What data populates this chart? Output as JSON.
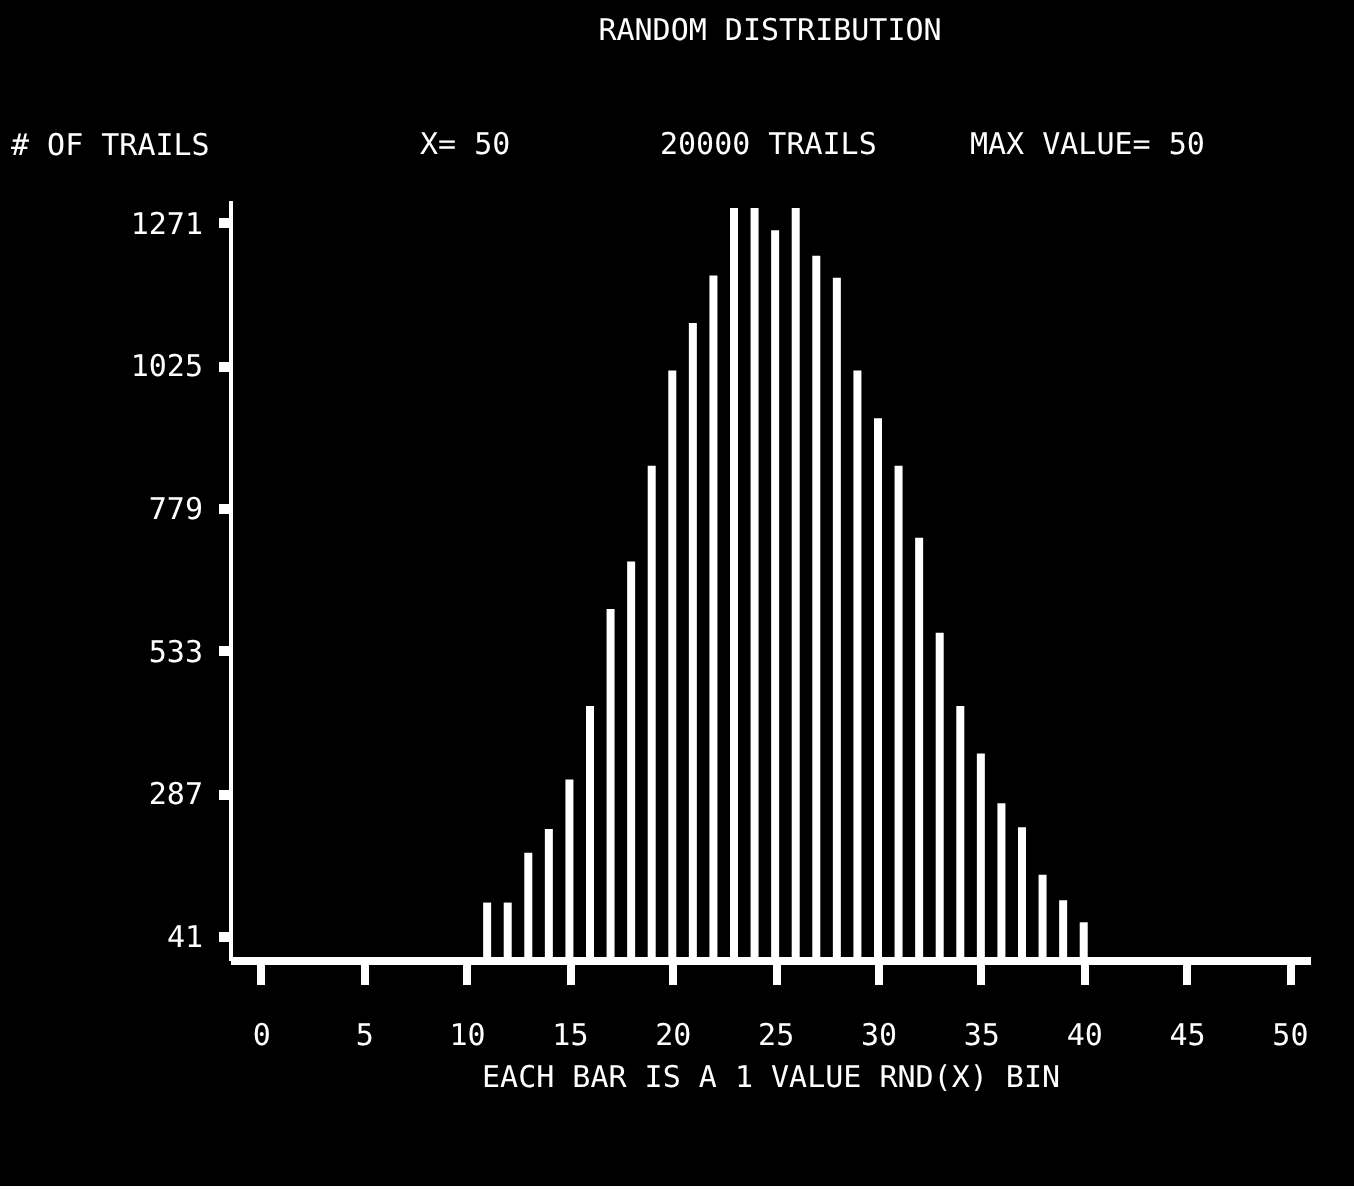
{
  "chart_data": {
    "type": "bar",
    "title": "RANDOM DISTRIBUTION",
    "ylabel": "# OF TRAILS",
    "xlabel": "EACH BAR IS A 1 VALUE RND(X) BIN",
    "annotations": [
      "X= 50",
      "20000 TRAILS",
      "MAX VALUE= 50"
    ],
    "x": [
      11,
      12,
      13,
      14,
      15,
      16,
      17,
      18,
      19,
      20,
      21,
      22,
      23,
      24,
      25,
      26,
      27,
      28,
      29,
      30,
      31,
      32,
      33,
      34,
      35,
      36,
      37,
      38,
      39,
      40
    ],
    "values": [
      99,
      99,
      185,
      226,
      311,
      438,
      605,
      687,
      852,
      1016,
      1098,
      1180,
      1296,
      1296,
      1258,
      1296,
      1214,
      1176,
      1016,
      934,
      852,
      728,
      564,
      438,
      356,
      270,
      229,
      147,
      103,
      65
    ],
    "color": "#ffffff",
    "xlim": [
      -1.5,
      51
    ],
    "xticks": [
      0,
      5,
      10,
      15,
      20,
      25,
      30,
      35,
      40,
      45,
      50
    ],
    "ylim": [
      0,
      1310
    ],
    "yticks": [
      41,
      287,
      533,
      779,
      1025,
      1271
    ],
    "grid": false
  }
}
